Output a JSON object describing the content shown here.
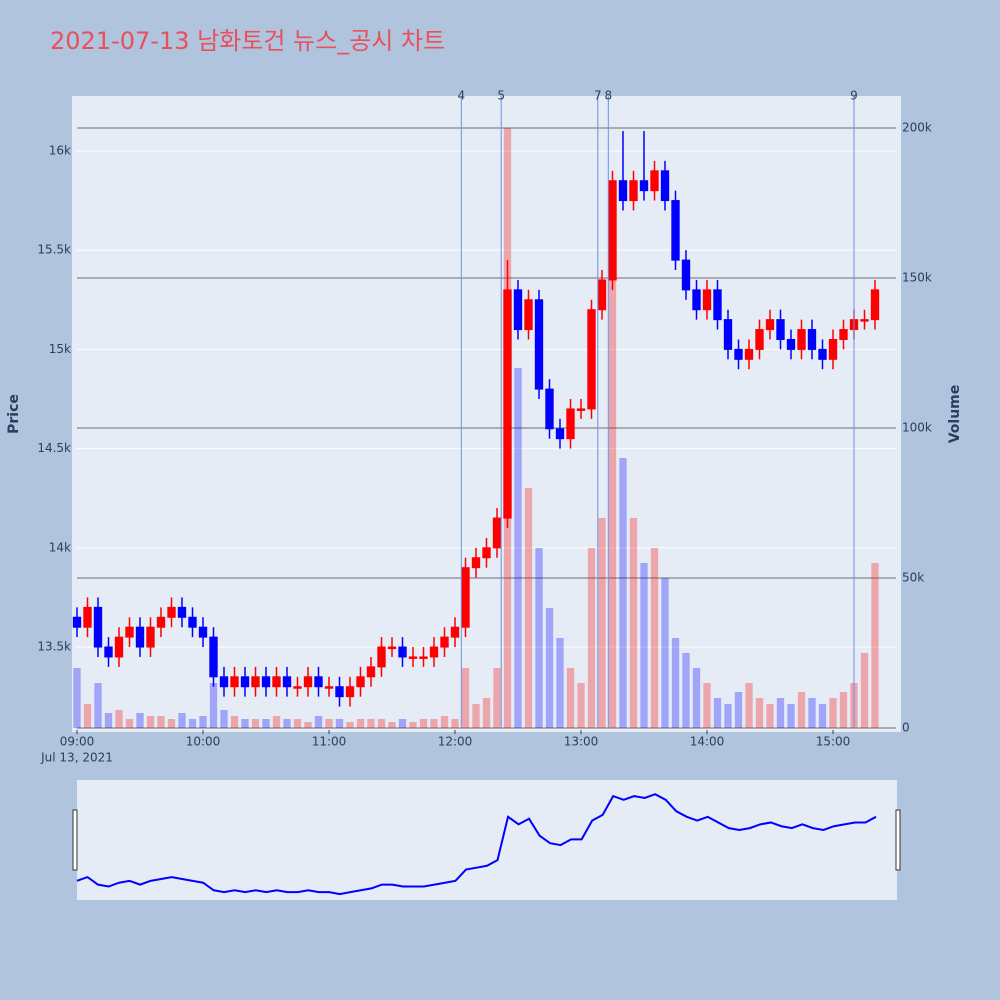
{
  "chart_data": {
    "type": "candlestick",
    "title": "2021-07-13 남화토건 뉴스_공시 차트",
    "y_title": "Price",
    "y2_title": "Volume",
    "up_color": "#ff0000",
    "down_color": "#0000ff",
    "x": [
      "2021-07-13 09:00",
      "2021-07-13 09:05",
      "2021-07-13 09:10",
      "2021-07-13 09:15",
      "2021-07-13 09:20",
      "2021-07-13 09:25",
      "2021-07-13 09:30",
      "2021-07-13 09:35",
      "2021-07-13 09:40",
      "2021-07-13 09:45",
      "2021-07-13 09:50",
      "2021-07-13 09:55",
      "2021-07-13 10:00",
      "2021-07-13 10:05",
      "2021-07-13 10:10",
      "2021-07-13 10:15",
      "2021-07-13 10:20",
      "2021-07-13 10:25",
      "2021-07-13 10:30",
      "2021-07-13 10:35",
      "2021-07-13 10:40",
      "2021-07-13 10:45",
      "2021-07-13 10:50",
      "2021-07-13 10:55",
      "2021-07-13 11:00",
      "2021-07-13 11:05",
      "2021-07-13 11:10",
      "2021-07-13 11:15",
      "2021-07-13 11:20",
      "2021-07-13 11:25",
      "2021-07-13 11:30",
      "2021-07-13 11:35",
      "2021-07-13 11:40",
      "2021-07-13 11:45",
      "2021-07-13 11:50",
      "2021-07-13 11:55",
      "2021-07-13 12:00",
      "2021-07-13 12:05",
      "2021-07-13 12:10",
      "2021-07-13 12:15",
      "2021-07-13 12:20",
      "2021-07-13 12:25",
      "2021-07-13 12:30",
      "2021-07-13 12:35",
      "2021-07-13 12:40",
      "2021-07-13 12:45",
      "2021-07-13 12:50",
      "2021-07-13 12:55",
      "2021-07-13 13:00",
      "2021-07-13 13:05",
      "2021-07-13 13:10",
      "2021-07-13 13:15",
      "2021-07-13 13:20",
      "2021-07-13 13:25",
      "2021-07-13 13:30",
      "2021-07-13 13:35",
      "2021-07-13 13:40",
      "2021-07-13 13:45",
      "2021-07-13 13:50",
      "2021-07-13 13:55",
      "2021-07-13 14:00",
      "2021-07-13 14:05",
      "2021-07-13 14:10",
      "2021-07-13 14:15",
      "2021-07-13 14:20",
      "2021-07-13 14:25",
      "2021-07-13 14:30",
      "2021-07-13 14:35",
      "2021-07-13 14:40",
      "2021-07-13 14:45",
      "2021-07-13 14:50",
      "2021-07-13 14:55",
      "2021-07-13 15:00",
      "2021-07-13 15:05",
      "2021-07-13 15:10",
      "2021-07-13 15:15",
      "2021-07-13 15:20"
    ],
    "open": [
      13650,
      13600,
      13700,
      13500,
      13450,
      13550,
      13600,
      13500,
      13600,
      13650,
      13700,
      13650,
      13600,
      13550,
      13350,
      13300,
      13350,
      13300,
      13350,
      13300,
      13350,
      13300,
      13300,
      13350,
      13300,
      13300,
      13250,
      13300,
      13350,
      13400,
      13500,
      13500,
      13450,
      13450,
      13450,
      13500,
      13550,
      13600,
      13900,
      13950,
      14000,
      14150,
      15300,
      15100,
      15250,
      14800,
      14600,
      14550,
      14700,
      14700,
      15200,
      15350,
      15850,
      15750,
      15850,
      15800,
      15900,
      15750,
      15450,
      15300,
      15200,
      15300,
      15150,
      15000,
      14950,
      15000,
      15100,
      15150,
      15050,
      15000,
      15100,
      15000,
      14950,
      15050,
      15100,
      15150,
      15150
    ],
    "high": [
      13700,
      13750,
      13750,
      13550,
      13600,
      13650,
      13650,
      13650,
      13700,
      13750,
      13750,
      13700,
      13650,
      13600,
      13400,
      13400,
      13400,
      13400,
      13400,
      13400,
      13400,
      13350,
      13400,
      13400,
      13350,
      13350,
      13350,
      13400,
      13450,
      13550,
      13550,
      13550,
      13500,
      13500,
      13550,
      13600,
      13650,
      13950,
      14000,
      14050,
      14200,
      15450,
      15350,
      15300,
      15300,
      14850,
      14650,
      14750,
      14750,
      15250,
      15400,
      15900,
      16100,
      15900,
      16100,
      15950,
      15950,
      15800,
      15500,
      15350,
      15350,
      15350,
      15200,
      15050,
      15050,
      15150,
      15200,
      15200,
      15100,
      15150,
      15150,
      15050,
      15100,
      15150,
      15200,
      15200,
      15350
    ],
    "low": [
      13550,
      13550,
      13450,
      13400,
      13400,
      13500,
      13450,
      13450,
      13550,
      13600,
      13600,
      13550,
      13500,
      13300,
      13250,
      13250,
      13250,
      13250,
      13250,
      13250,
      13250,
      13250,
      13250,
      13250,
      13250,
      13200,
      13200,
      13250,
      13300,
      13350,
      13450,
      13400,
      13400,
      13400,
      13400,
      13450,
      13500,
      13550,
      13850,
      13900,
      13950,
      14100,
      15050,
      15050,
      14750,
      14550,
      14500,
      14500,
      14650,
      14650,
      15150,
      15300,
      15700,
      15700,
      15750,
      15750,
      15700,
      15400,
      15250,
      15150,
      15150,
      15100,
      14950,
      14900,
      14900,
      14950,
      15050,
      15000,
      14950,
      14950,
      14950,
      14900,
      14900,
      15000,
      15050,
      15100,
      15100
    ],
    "close": [
      13600,
      13700,
      13500,
      13450,
      13550,
      13600,
      13500,
      13600,
      13650,
      13700,
      13650,
      13600,
      13550,
      13350,
      13300,
      13350,
      13300,
      13350,
      13300,
      13350,
      13300,
      13300,
      13350,
      13300,
      13300,
      13250,
      13300,
      13350,
      13400,
      13500,
      13500,
      13450,
      13450,
      13450,
      13500,
      13550,
      13600,
      13900,
      13950,
      14000,
      14150,
      15300,
      15100,
      15250,
      14800,
      14600,
      14550,
      14700,
      14700,
      15200,
      15350,
      15850,
      15750,
      15850,
      15800,
      15900,
      15750,
      15450,
      15300,
      15200,
      15300,
      15150,
      15000,
      14950,
      15000,
      15100,
      15150,
      15050,
      15000,
      15100,
      15000,
      14950,
      15050,
      15100,
      15150,
      15150,
      15300
    ],
    "volume": [
      20000,
      8000,
      15000,
      5000,
      6000,
      3000,
      5000,
      4000,
      4000,
      3000,
      5000,
      3000,
      4000,
      15000,
      6000,
      4000,
      3000,
      3000,
      3000,
      4000,
      3000,
      3000,
      2000,
      4000,
      3000,
      3000,
      2000,
      3000,
      3000,
      3000,
      2000,
      3000,
      2000,
      3000,
      3000,
      4000,
      3000,
      20000,
      8000,
      10000,
      20000,
      200000,
      120000,
      80000,
      60000,
      40000,
      30000,
      20000,
      15000,
      60000,
      70000,
      180000,
      90000,
      70000,
      55000,
      60000,
      50000,
      30000,
      25000,
      20000,
      15000,
      10000,
      8000,
      12000,
      15000,
      10000,
      8000,
      10000,
      8000,
      12000,
      10000,
      8000,
      10000,
      12000,
      15000,
      25000,
      55000
    ],
    "xlim": [
      "2021-07-13 09:00",
      "2021-07-13 15:30"
    ],
    "xticks": [
      {
        "value": "2021-07-13 09:00",
        "label": "09:00"
      },
      {
        "value": "2021-07-13 10:00",
        "label": "10:00"
      },
      {
        "value": "2021-07-13 11:00",
        "label": "11:00"
      },
      {
        "value": "2021-07-13 12:00",
        "label": "12:00"
      },
      {
        "value": "2021-07-13 13:00",
        "label": "13:00"
      },
      {
        "value": "2021-07-13 14:00",
        "label": "14:00"
      },
      {
        "value": "2021-07-13 15:00",
        "label": "15:00"
      }
    ],
    "x_date_label": "Jul 13, 2021",
    "ylim": [
      13092,
      16277
    ],
    "yticks": [
      {
        "value": 13500,
        "label": "13.5k"
      },
      {
        "value": 14000,
        "label": "14k"
      },
      {
        "value": 14500,
        "label": "14.5k"
      },
      {
        "value": 15000,
        "label": "15k"
      },
      {
        "value": 15500,
        "label": "15.5k"
      },
      {
        "value": 16000,
        "label": "16k"
      }
    ],
    "y2lim": [
      0,
      210667
    ],
    "y2ticks": [
      0,
      {
        "value": 50000,
        "label": "50k"
      },
      {
        "value": 100000,
        "label": "100k"
      },
      {
        "value": 150000,
        "label": "150k"
      },
      {
        "value": 200000,
        "label": "200k"
      }
    ],
    "events": [
      {
        "x": "2021-07-13 12:03",
        "label": "4"
      },
      {
        "x": "2021-07-13 12:22",
        "label": "5"
      },
      {
        "x": "2021-07-13 13:08",
        "label": "7"
      },
      {
        "x": "2021-07-13 13:13",
        "label": "8"
      },
      {
        "x": "2021-07-13 15:10",
        "label": "9"
      }
    ]
  }
}
